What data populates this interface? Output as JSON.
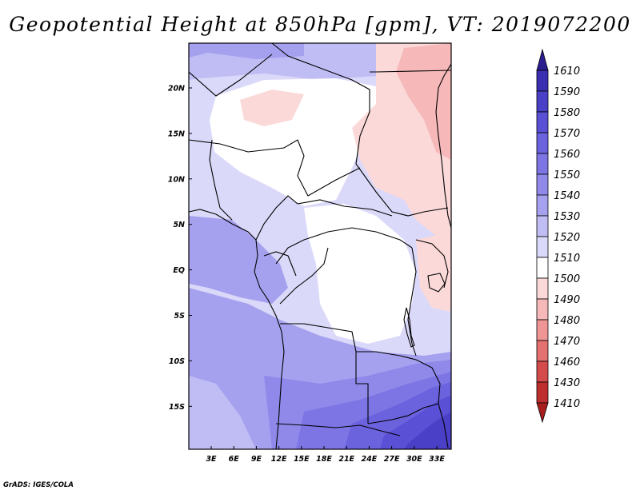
{
  "title": "Geopotential Height at 850hPa [gpm], VT: 2019072200",
  "credit": "GrADS: IGES/COLA",
  "latitudes": [
    "20N",
    "15N",
    "10N",
    "5N",
    "EQ",
    "5S",
    "10S",
    "15S"
  ],
  "longitudes": [
    "3E",
    "6E",
    "9E",
    "12E",
    "15E",
    "18E",
    "21E",
    "24E",
    "27E",
    "30E",
    "33E"
  ],
  "colorbar": {
    "levels": [
      "1610",
      "1590",
      "1580",
      "1570",
      "1560",
      "1550",
      "1540",
      "1530",
      "1520",
      "1510",
      "1500",
      "1490",
      "1480",
      "1470",
      "1460",
      "1430",
      "1410"
    ],
    "colors": [
      "#2b1e8f",
      "#3a2fb0",
      "#4a3fc7",
      "#5a50d6",
      "#6b62de",
      "#7d75e4",
      "#9089ea",
      "#a6a1ef",
      "#c0bdf4",
      "#dbd9f9",
      "#ffffff",
      "#fbd9d9",
      "#f6b8b8",
      "#ef9595",
      "#e47070",
      "#d44b4b",
      "#bf2e2e",
      "#a81e1e"
    ]
  },
  "field_colors": {
    "white": "#ffffff",
    "light_blue": "#dbd9f9",
    "blue_1530": "#c0bdf4",
    "blue_1540": "#a6a1ef",
    "blue_1550": "#9089ea",
    "blue_1560": "#7d75e4",
    "blue_1570": "#6b62de",
    "blue_1580": "#5a50d6",
    "blue_1590": "#4a3fc7",
    "blue_1600": "#3a2fb0",
    "pink_1500": "#fbd9d9",
    "pink_1490": "#f6b8b8"
  }
}
